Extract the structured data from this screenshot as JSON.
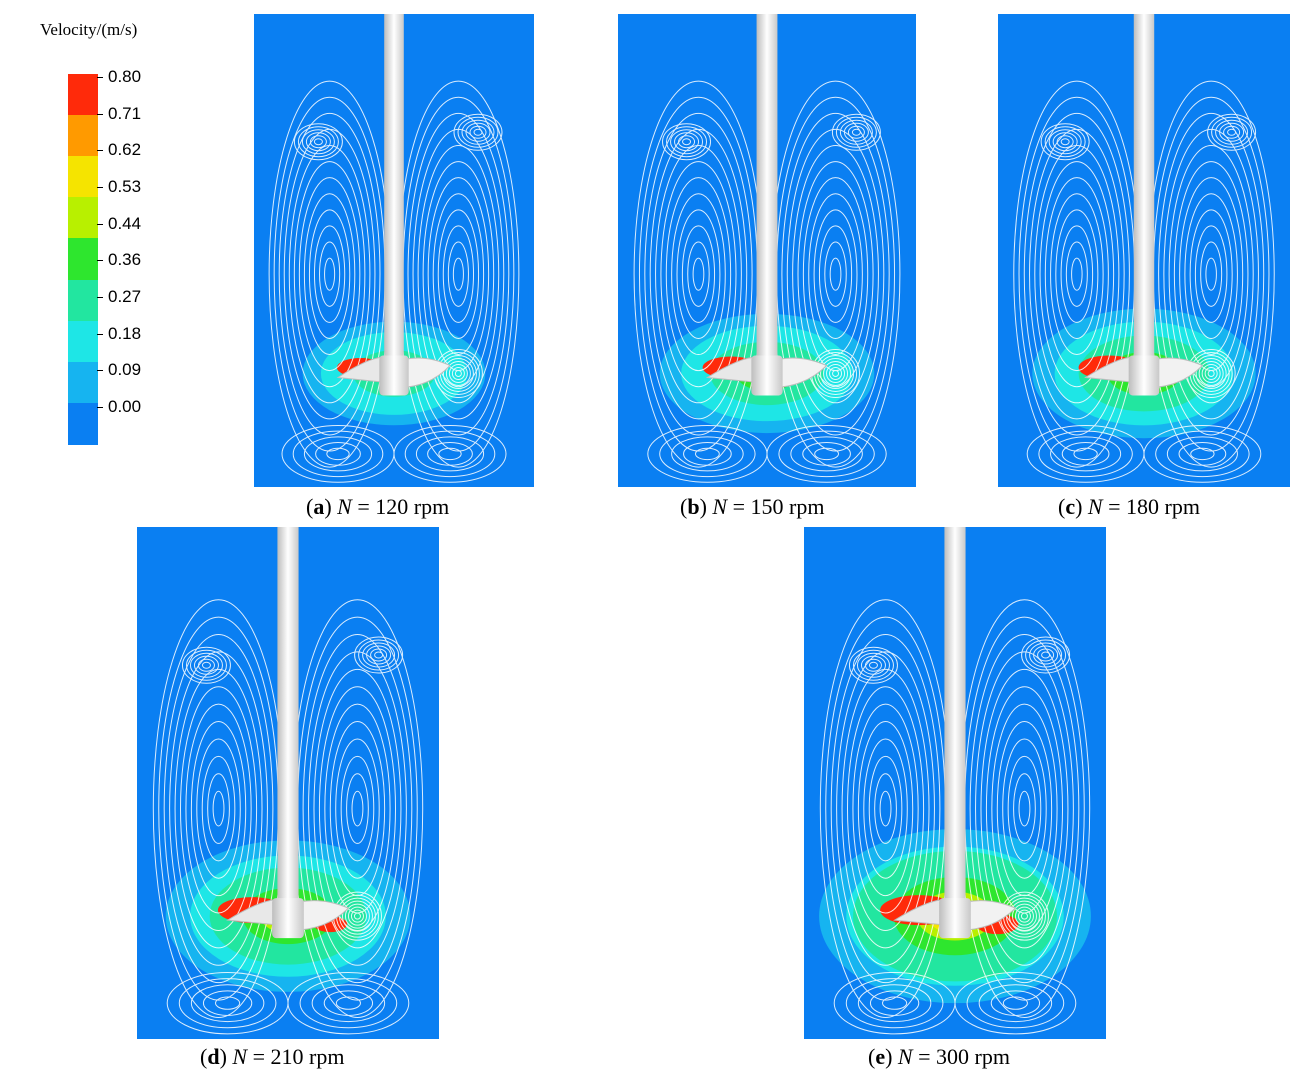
{
  "legend": {
    "title": "Velocity/(m/s)",
    "ticks": [
      "0.80",
      "0.71",
      "0.62",
      "0.53",
      "0.44",
      "0.36",
      "0.27",
      "0.18",
      "0.09",
      "0.00"
    ],
    "colors": [
      "#ff2a0a",
      "#ff9a00",
      "#f5e400",
      "#b8f000",
      "#2ee62e",
      "#22e6a0",
      "#1ee6e6",
      "#16b4f0",
      "#0a7ff2",
      "#0034f5"
    ]
  },
  "panels": [
    {
      "id": "a",
      "letter": "a",
      "var": "N",
      "value": "= 120 rpm",
      "intensity": 0.45
    },
    {
      "id": "b",
      "letter": "b",
      "var": "N",
      "value": "= 150 rpm",
      "intensity": 0.6
    },
    {
      "id": "c",
      "letter": "c",
      "var": "N",
      "value": "= 180 rpm",
      "intensity": 0.7
    },
    {
      "id": "d",
      "letter": "d",
      "var": "N",
      "value": "= 210 rpm",
      "intensity": 0.8
    },
    {
      "id": "e",
      "letter": "e",
      "var": "N",
      "value": "= 300 rpm",
      "intensity": 1.0
    }
  ]
}
